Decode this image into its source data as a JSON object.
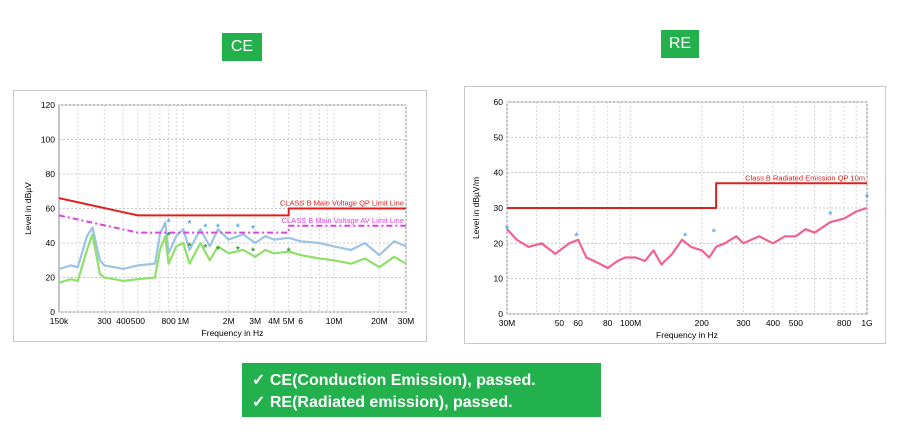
{
  "tags": {
    "ce": "CE",
    "re": "RE"
  },
  "results": {
    "check": "✓",
    "line1": "CE(Conduction Emission), passed.",
    "line2": "RE(Radiated emission), passed."
  },
  "chart_data": [
    {
      "type": "line",
      "xlabel": "Frequency in Hz",
      "ylabel": "Level in dBµV",
      "x_scale": "log",
      "xlim": [
        150000,
        30000000
      ],
      "ylim": [
        0,
        120
      ],
      "yticks": [
        0,
        20,
        40,
        60,
        80,
        100,
        120
      ],
      "xticks": [
        {
          "v": 150000,
          "t": "150k"
        },
        {
          "v": 300000,
          "t": "300"
        },
        {
          "v": 400000,
          "t": "400"
        },
        {
          "v": 500000,
          "t": "500"
        },
        {
          "v": 800000,
          "t": "800"
        },
        {
          "v": 1000000,
          "t": "1M"
        },
        {
          "v": 2000000,
          "t": "2M"
        },
        {
          "v": 3000000,
          "t": "3M"
        },
        {
          "v": 4000000,
          "t": "4M"
        },
        {
          "v": 5000000,
          "t": "5M"
        },
        {
          "v": 6000000,
          "t": "6"
        },
        {
          "v": 10000000,
          "t": "10M"
        },
        {
          "v": 20000000,
          "t": "20M"
        },
        {
          "v": 30000000,
          "t": "30M"
        }
      ],
      "grid": true,
      "series": [
        {
          "name": "CLASS B Main Voltage  QP Limit Line",
          "color": "#e02020",
          "x": [
            150000,
            500000,
            500000,
            5000000,
            5000000,
            30000000
          ],
          "y": [
            66,
            56,
            56,
            56,
            60,
            60
          ]
        },
        {
          "name": "CLASS B Main Voltage  AV Limit Line",
          "color": "#dd44dd",
          "x": [
            150000,
            500000,
            500000,
            5000000,
            5000000,
            30000000
          ],
          "y": [
            56,
            46,
            46,
            46,
            50,
            50
          ]
        },
        {
          "color": "#9cc3e6",
          "x": [
            150000,
            180000,
            200000,
            230000,
            250000,
            280000,
            300000,
            350000,
            400000,
            500000,
            650000,
            700000,
            760000,
            800000,
            900000,
            1000000,
            1100000,
            1300000,
            1500000,
            1700000,
            2000000,
            2500000,
            3000000,
            3500000,
            4000000,
            5000000,
            6000000,
            8000000,
            10000000,
            13000000,
            16000000,
            20000000,
            25000000,
            30000000
          ],
          "y": [
            25,
            27,
            26,
            44,
            49,
            30,
            27,
            26,
            25,
            27,
            28,
            45,
            52,
            34,
            44,
            48,
            36,
            48,
            38,
            48,
            42,
            45,
            40,
            44,
            42,
            43,
            41,
            40,
            38,
            36,
            40,
            33,
            41,
            38
          ]
        },
        {
          "color": "#8ee06b",
          "x": [
            150000,
            180000,
            200000,
            230000,
            250000,
            280000,
            300000,
            350000,
            400000,
            500000,
            650000,
            700000,
            760000,
            800000,
            900000,
            1000000,
            1100000,
            1300000,
            1500000,
            1700000,
            2000000,
            2500000,
            3000000,
            3500000,
            4000000,
            5000000,
            6000000,
            8000000,
            10000000,
            13000000,
            16000000,
            20000000,
            25000000,
            30000000
          ],
          "y": [
            17,
            19,
            18,
            36,
            45,
            22,
            20,
            19,
            18,
            19,
            20,
            36,
            44,
            28,
            38,
            40,
            28,
            40,
            30,
            38,
            34,
            36,
            32,
            36,
            34,
            35,
            33,
            31,
            30,
            28,
            31,
            26,
            32,
            28
          ]
        }
      ],
      "markers": [
        {
          "x": 800000,
          "y": 52,
          "color": "#5aaaee"
        },
        {
          "x": 1100000,
          "y": 51,
          "color": "#5aaaee"
        },
        {
          "x": 1400000,
          "y": 49,
          "color": "#5aaaee"
        },
        {
          "x": 1700000,
          "y": 49,
          "color": "#5aaaee"
        },
        {
          "x": 2300000,
          "y": 49,
          "color": "#5aaaee"
        },
        {
          "x": 2900000,
          "y": 48,
          "color": "#5aaaee"
        },
        {
          "x": 800000,
          "y": 44,
          "color": "#30a030"
        },
        {
          "x": 1100000,
          "y": 38,
          "color": "#30a030"
        },
        {
          "x": 1400000,
          "y": 37,
          "color": "#30a030"
        },
        {
          "x": 1700000,
          "y": 36,
          "color": "#30a030"
        },
        {
          "x": 2300000,
          "y": 36,
          "color": "#30a030"
        },
        {
          "x": 2900000,
          "y": 35,
          "color": "#30a030"
        },
        {
          "x": 5000000,
          "y": 35,
          "color": "#30a030"
        }
      ]
    },
    {
      "type": "line",
      "xlabel": "Frequency in Hz",
      "ylabel": "Level in dBµV/m",
      "x_scale": "log",
      "xlim": [
        30000000,
        1000000000
      ],
      "ylim": [
        0,
        60
      ],
      "yticks": [
        0,
        10,
        20,
        30,
        40,
        50,
        60
      ],
      "xticks": [
        {
          "v": 30000000,
          "t": "30M"
        },
        {
          "v": 50000000,
          "t": "50"
        },
        {
          "v": 60000000,
          "t": "60"
        },
        {
          "v": 80000000,
          "t": "80"
        },
        {
          "v": 100000000,
          "t": "100M"
        },
        {
          "v": 200000000,
          "t": "200"
        },
        {
          "v": 300000000,
          "t": "300"
        },
        {
          "v": 400000000,
          "t": "400"
        },
        {
          "v": 500000000,
          "t": "500"
        },
        {
          "v": 800000000,
          "t": "800"
        },
        {
          "v": 1000000000,
          "t": "1G"
        }
      ],
      "grid": true,
      "series": [
        {
          "name": "Class  B Radiated Emission  QP  10m",
          "color": "#e02020",
          "x": [
            30000000,
            230000000,
            230000000,
            1000000000
          ],
          "y": [
            30,
            30,
            37,
            37
          ]
        },
        {
          "color": "#f06292",
          "x": [
            30000000,
            33000000,
            37000000,
            42000000,
            48000000,
            55000000,
            60000000,
            65000000,
            70000000,
            75000000,
            80000000,
            88000000,
            95000000,
            105000000,
            115000000,
            125000000,
            135000000,
            150000000,
            165000000,
            180000000,
            200000000,
            215000000,
            230000000,
            250000000,
            280000000,
            300000000,
            350000000,
            400000000,
            450000000,
            500000000,
            550000000,
            600000000,
            700000000,
            800000000,
            900000000,
            1000000000
          ],
          "y": [
            24,
            21,
            19,
            20,
            17,
            20,
            21,
            16,
            15,
            14,
            13,
            15,
            16,
            16,
            15,
            18,
            14,
            17,
            21,
            19,
            18,
            16,
            19,
            20,
            22,
            20,
            22,
            20,
            22,
            22,
            24,
            23,
            26,
            27,
            29,
            30
          ]
        }
      ],
      "markers": [
        {
          "x": 30000000,
          "y": 24,
          "color": "#5aaaee"
        },
        {
          "x": 59000000,
          "y": 22,
          "color": "#5aaaee"
        },
        {
          "x": 170000000,
          "y": 22,
          "color": "#5aaaee"
        },
        {
          "x": 225000000,
          "y": 23,
          "color": "#5aaaee"
        },
        {
          "x": 700000000,
          "y": 28,
          "color": "#5aaaee"
        },
        {
          "x": 1000000000,
          "y": 33,
          "color": "#5aaaee"
        }
      ]
    }
  ]
}
